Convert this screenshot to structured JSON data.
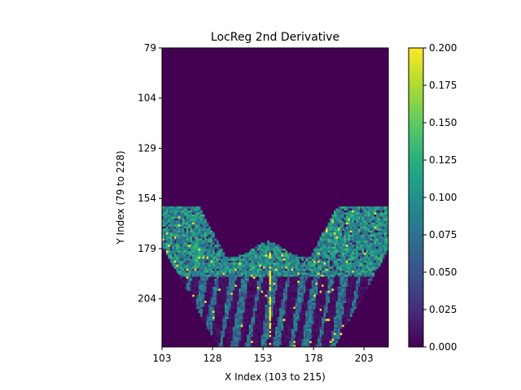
{
  "chart_data": {
    "type": "heatmap",
    "title": "LocReg 2nd Derivative",
    "xlabel": "X Index (103 to 215)",
    "ylabel": "Y Index (79 to 228)",
    "xlim": [
      103,
      215
    ],
    "ylim": [
      228,
      79
    ],
    "x_ticks": [
      103,
      128,
      153,
      178,
      203
    ],
    "y_ticks": [
      79,
      104,
      129,
      154,
      179,
      204
    ],
    "colorbar": {
      "colormap": "viridis",
      "range": [
        0.0,
        0.2
      ],
      "ticks": [
        "0.000",
        "0.025",
        "0.050",
        "0.075",
        "0.100",
        "0.125",
        "0.150",
        "0.175",
        "0.200"
      ]
    },
    "regions": [
      {
        "label": "upper area (rows 79–158)",
        "value": 0.0
      },
      {
        "label": "lower band (rows 158–193)",
        "value": 0.11
      },
      {
        "label": "bottom streaks (rows 193–228)",
        "value": 0.06
      },
      {
        "label": "central vertical line (x≈156)",
        "value": 0.2
      }
    ]
  },
  "colors": {
    "viridis_low": "#440154",
    "viridis_mid": "#21918c",
    "viridis_high": "#fde725"
  }
}
